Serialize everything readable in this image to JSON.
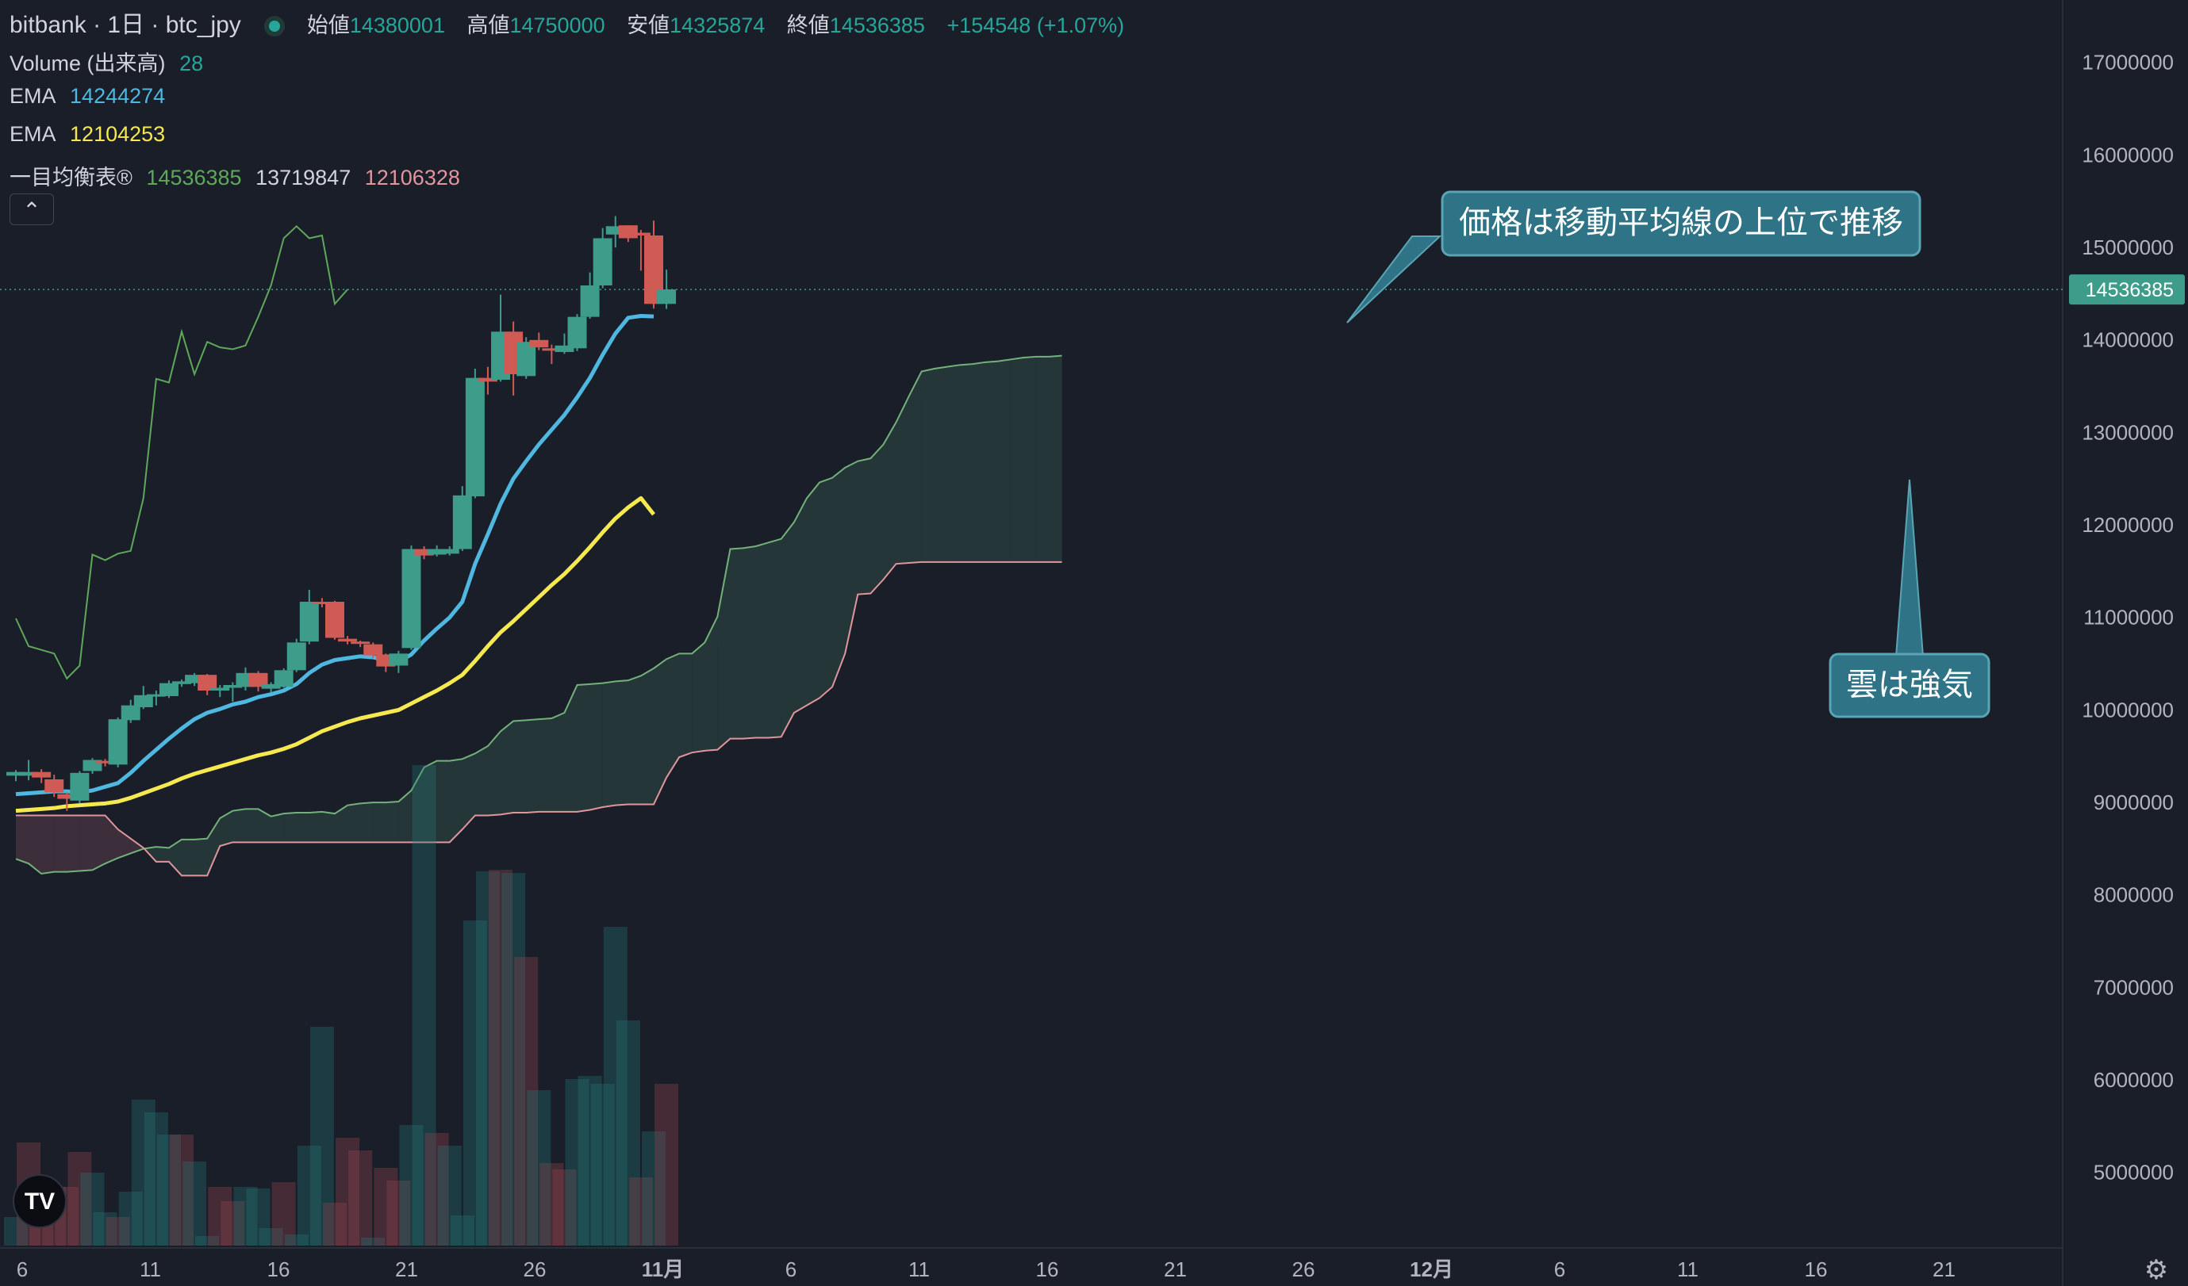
{
  "header": {
    "title": "bitbank · 1日 · btc_jpy",
    "ohlc": [
      {
        "label": "始値",
        "value": "14380001"
      },
      {
        "label": "高値",
        "value": "14750000"
      },
      {
        "label": "安値",
        "value": "14325874"
      },
      {
        "label": "終値",
        "value": "14536385"
      }
    ],
    "change": "+154548 (+1.07%)"
  },
  "indicators": {
    "volume": {
      "label": "Volume (出来高)",
      "value": "28"
    },
    "ema1": {
      "label": "EMA",
      "value": "14244274",
      "color": "#4fb8e0"
    },
    "ema2": {
      "label": "EMA",
      "value": "12104253",
      "color": "#f5e94f"
    },
    "ichimoku": {
      "label": "一目均衡表®",
      "values": [
        "14536385",
        "13719847",
        "12106328"
      ]
    }
  },
  "colors": {
    "background": "#1a1e29",
    "up": "#3e9c8b",
    "down": "#d05a54",
    "grid_text": "#b2b5be",
    "span_a": "#72b27a",
    "span_b": "#e0969c",
    "lagging": "#5ea85a",
    "callout": "#2e7386"
  },
  "icons": {
    "collapse": "chevron-up-icon",
    "logo": "tradingview-logo-icon",
    "settings": "gear-icon"
  },
  "price_axis": {
    "labels": [
      "17000000",
      "16000000",
      "15000000",
      "14000000",
      "13000000",
      "12000000",
      "11000000",
      "10000000",
      "9000000",
      "8000000",
      "7000000",
      "6000000",
      "5000000"
    ],
    "current_price": "14536385"
  },
  "time_axis": {
    "labels": [
      "6",
      "11",
      "16",
      "21",
      "26",
      "11月",
      "6",
      "11",
      "16",
      "21",
      "26",
      "12月",
      "6",
      "11",
      "16",
      "21"
    ]
  },
  "annotations": {
    "ma": "価格は移動平均線の上位で推移",
    "cloud": "雲は強気"
  },
  "chart_data": {
    "type": "candlestick",
    "candles": [
      [
        9280000,
        9320000,
        9220000,
        9340000
      ],
      [
        9280000,
        9320000,
        9230000,
        9450000
      ],
      [
        9320000,
        9260000,
        9200000,
        9350000
      ],
      [
        9240000,
        9100000,
        9050000,
        9290000
      ],
      [
        9080000,
        9030000,
        8900000,
        9100000
      ],
      [
        9010000,
        9310000,
        8980000,
        9330000
      ],
      [
        9330000,
        9450000,
        9300000,
        9470000
      ],
      [
        9440000,
        9420000,
        9380000,
        9460000
      ],
      [
        9400000,
        9890000,
        9370000,
        9910000
      ],
      [
        9880000,
        10040000,
        9850000,
        10100000
      ],
      [
        10020000,
        10150000,
        10000000,
        10250000
      ],
      [
        10150000,
        10160000,
        10040000,
        10200000
      ],
      [
        10140000,
        10280000,
        10120000,
        10310000
      ],
      [
        10270000,
        10300000,
        10240000,
        10320000
      ],
      [
        10280000,
        10370000,
        10250000,
        10390000
      ],
      [
        10370000,
        10200000,
        10150000,
        10380000
      ],
      [
        10200000,
        10230000,
        10130000,
        10260000
      ],
      [
        10230000,
        10260000,
        10080000,
        10290000
      ],
      [
        10240000,
        10390000,
        10200000,
        10450000
      ],
      [
        10390000,
        10240000,
        10190000,
        10410000
      ],
      [
        10220000,
        10270000,
        10180000,
        10290000
      ],
      [
        10240000,
        10420000,
        10230000,
        10440000
      ],
      [
        10420000,
        10720000,
        10400000,
        10760000
      ],
      [
        10730000,
        11160000,
        10700000,
        11290000
      ],
      [
        11160000,
        11140000,
        11100000,
        11200000
      ],
      [
        11160000,
        10770000,
        10750000,
        11170000
      ],
      [
        10760000,
        10730000,
        10700000,
        10790000
      ],
      [
        10730000,
        10710000,
        10670000,
        10740000
      ],
      [
        10700000,
        10580000,
        10550000,
        10720000
      ],
      [
        10590000,
        10460000,
        10400000,
        10600000
      ],
      [
        10470000,
        10600000,
        10390000,
        10630000
      ],
      [
        10660000,
        11730000,
        10640000,
        11770000
      ],
      [
        11730000,
        11660000,
        11620000,
        11760000
      ],
      [
        11670000,
        11730000,
        11650000,
        11770000
      ],
      [
        11680000,
        11730000,
        11660000,
        11760000
      ],
      [
        11730000,
        12310000,
        11710000,
        12410000
      ],
      [
        12300000,
        13580000,
        12280000,
        13680000
      ],
      [
        13580000,
        13540000,
        13400000,
        13700000
      ],
      [
        13560000,
        14080000,
        13540000,
        14480000
      ],
      [
        14080000,
        13620000,
        13390000,
        14190000
      ],
      [
        13600000,
        13970000,
        13570000,
        14020000
      ],
      [
        13990000,
        13910000,
        13880000,
        14070000
      ],
      [
        13900000,
        13890000,
        13730000,
        13940000
      ],
      [
        13860000,
        13930000,
        13840000,
        14060000
      ],
      [
        13900000,
        14240000,
        13870000,
        14270000
      ],
      [
        14240000,
        14580000,
        14220000,
        14720000
      ],
      [
        14580000,
        15090000,
        14550000,
        15200000
      ],
      [
        15130000,
        15220000,
        14990000,
        15330000
      ],
      [
        15230000,
        15090000,
        15050000,
        15230000
      ],
      [
        15150000,
        15120000,
        14740000,
        15180000
      ],
      [
        15120000,
        14380000,
        14330000,
        15280000
      ],
      [
        14380000,
        14536385,
        14325874,
        14750000
      ]
    ],
    "volume": [
      [
        4680000,
        1
      ],
      [
        5150000,
        0
      ],
      [
        4870000,
        0
      ],
      [
        4870000,
        0
      ],
      [
        4870000,
        0
      ],
      [
        5090000,
        0
      ],
      [
        4960000,
        1
      ],
      [
        4710000,
        1
      ],
      [
        4680000,
        0
      ],
      [
        4840000,
        1
      ],
      [
        5420000,
        1
      ],
      [
        5340000,
        1
      ],
      [
        5200000,
        1
      ],
      [
        5200000,
        0
      ],
      [
        5030000,
        1
      ],
      [
        4560000,
        1
      ],
      [
        4870000,
        0
      ],
      [
        4780000,
        0
      ],
      [
        4870000,
        1
      ],
      [
        4860000,
        1
      ],
      [
        4610000,
        1
      ],
      [
        4900000,
        0
      ],
      [
        4570000,
        1
      ],
      [
        5130000,
        1
      ],
      [
        5880000,
        1
      ],
      [
        4770000,
        0
      ],
      [
        5180000,
        0
      ],
      [
        5100000,
        0
      ],
      [
        4550000,
        1
      ],
      [
        4990000,
        0
      ],
      [
        4910000,
        0
      ],
      [
        5260000,
        1
      ],
      [
        7530000,
        1
      ],
      [
        5210000,
        0
      ],
      [
        5130000,
        1
      ],
      [
        4690000,
        1
      ],
      [
        6550000,
        1
      ],
      [
        6860000,
        1
      ],
      [
        6870000,
        0
      ],
      [
        6850000,
        1
      ],
      [
        6320000,
        0
      ],
      [
        5480000,
        1
      ],
      [
        5020000,
        0
      ],
      [
        4980000,
        0
      ],
      [
        5550000,
        1
      ],
      [
        5570000,
        1
      ],
      [
        5520000,
        1
      ],
      [
        6510000,
        1
      ],
      [
        5920000,
        1
      ],
      [
        4930000,
        0
      ],
      [
        5220000,
        1
      ],
      [
        5520000,
        0
      ],
      [
        4470000,
        1
      ]
    ],
    "ema_fast": [
      9080000,
      9090000,
      9100000,
      9110000,
      9110000,
      9100000,
      9120000,
      9160000,
      9200000,
      9310000,
      9440000,
      9560000,
      9680000,
      9790000,
      9890000,
      9960000,
      10000000,
      10050000,
      10080000,
      10130000,
      10160000,
      10200000,
      10270000,
      10390000,
      10480000,
      10530000,
      10550000,
      10570000,
      10560000,
      10530000,
      10510000,
      10590000,
      10740000,
      10870000,
      10990000,
      11160000,
      11570000,
      11890000,
      12220000,
      12490000,
      12680000,
      12860000,
      13020000,
      13180000,
      13370000,
      13580000,
      13830000,
      14060000,
      14230000,
      14250000,
      14244274
    ],
    "ema_slow": [
      8900000,
      8910000,
      8920000,
      8930000,
      8950000,
      8960000,
      8970000,
      8980000,
      9000000,
      9040000,
      9090000,
      9140000,
      9190000,
      9250000,
      9300000,
      9340000,
      9380000,
      9420000,
      9460000,
      9500000,
      9530000,
      9570000,
      9620000,
      9690000,
      9760000,
      9810000,
      9860000,
      9900000,
      9930000,
      9960000,
      9990000,
      10060000,
      10130000,
      10200000,
      10280000,
      10370000,
      10520000,
      10680000,
      10830000,
      10950000,
      11080000,
      11210000,
      11340000,
      11460000,
      11600000,
      11750000,
      11910000,
      12060000,
      12180000,
      12280000,
      12104253
    ],
    "lagging_span": [
      10980000,
      10680000,
      10640000,
      10600000,
      10330000,
      10470000,
      11670000,
      11610000,
      11680000,
      11710000,
      12280000,
      13570000,
      13530000,
      14080000,
      13620000,
      13970000,
      13910000,
      13890000,
      13930000,
      14240000,
      14580000,
      15090000,
      15220000,
      15090000,
      15120000,
      14380000,
      14536385
    ],
    "span_a": [
      8380000,
      8330000,
      8220000,
      8240000,
      8240000,
      8250000,
      8260000,
      8330000,
      8390000,
      8440000,
      8490000,
      8510000,
      8500000,
      8590000,
      8590000,
      8600000,
      8820000,
      8900000,
      8920000,
      8920000,
      8840000,
      8870000,
      8880000,
      8880000,
      8890000,
      8870000,
      8960000,
      8980000,
      8990000,
      8990000,
      9000000,
      9120000,
      9370000,
      9440000,
      9440000,
      9460000,
      9520000,
      9600000,
      9760000,
      9870000,
      9880000,
      9890000,
      9900000,
      9960000,
      10260000,
      10270000,
      10280000,
      10300000,
      10310000,
      10360000,
      10440000,
      10540000,
      10600000,
      10600000,
      10720000,
      11000000,
      11730000,
      11740000,
      11760000,
      11800000,
      11840000,
      12020000,
      12280000,
      12450000,
      12500000,
      12610000,
      12680000,
      12710000,
      12860000,
      13100000,
      13380000,
      13650000,
      13680000,
      13700000,
      13720000,
      13730000,
      13750000,
      13760000,
      13780000,
      13800000,
      13810000,
      13810000,
      13820000
    ],
    "span_b": [
      8850000,
      8850000,
      8850000,
      8850000,
      8850000,
      8850000,
      8850000,
      8850000,
      8700000,
      8600000,
      8500000,
      8350000,
      8350000,
      8200000,
      8200000,
      8200000,
      8520000,
      8560000,
      8560000,
      8560000,
      8560000,
      8560000,
      8560000,
      8560000,
      8560000,
      8560000,
      8560000,
      8560000,
      8560000,
      8560000,
      8560000,
      8560000,
      8560000,
      8560000,
      8560000,
      8700000,
      8850000,
      8850000,
      8860000,
      8880000,
      8880000,
      8890000,
      8890000,
      8890000,
      8890000,
      8910000,
      8940000,
      8960000,
      8970000,
      8970000,
      8970000,
      9260000,
      9480000,
      9530000,
      9550000,
      9560000,
      9680000,
      9680000,
      9690000,
      9690000,
      9700000,
      9960000,
      10040000,
      10120000,
      10240000,
      10600000,
      11240000,
      11250000,
      11400000,
      11570000,
      11580000,
      11590000,
      11590000,
      11590000,
      11590000,
      11590000,
      11590000,
      11590000,
      11590000,
      11590000,
      11590000,
      11590000,
      11590000
    ],
    "ylim": [
      4500000,
      17500000
    ]
  }
}
